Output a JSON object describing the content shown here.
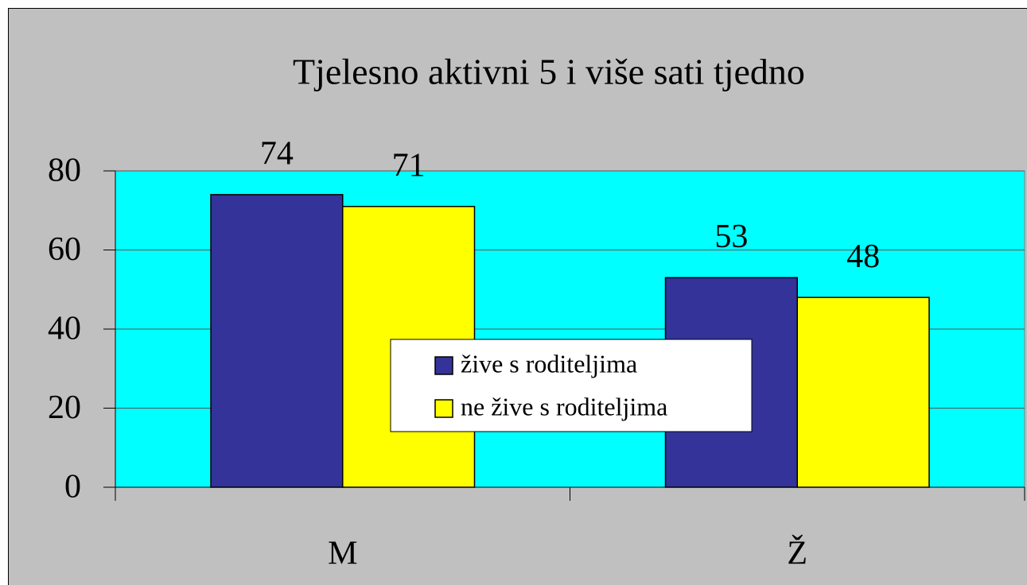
{
  "chart_data": {
    "type": "bar",
    "title": "Tjelesno aktivni 5 i više sati tjedno",
    "categories": [
      "M",
      "Ž"
    ],
    "series": [
      {
        "name": "žive s roditeljima",
        "color": "#333399",
        "values": [
          74,
          53
        ]
      },
      {
        "name": "ne žive s roditeljima",
        "color": "#ffff00",
        "values": [
          71,
          48
        ]
      }
    ],
    "ylim": [
      0,
      80
    ],
    "yticks": [
      0,
      20,
      40,
      60,
      80
    ],
    "grid": true,
    "legend": "center",
    "plot_background": "#00ffff",
    "background": "#c0c0c0"
  }
}
